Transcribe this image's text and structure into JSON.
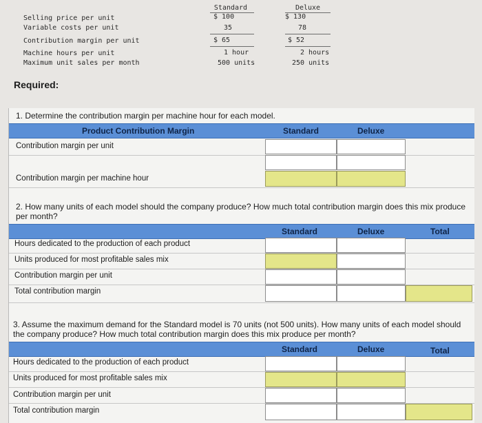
{
  "top_table": {
    "headers": [
      "Standard",
      "Deluxe"
    ],
    "rows": [
      {
        "label": "Selling price per unit",
        "standard": "$ 100",
        "deluxe": "$ 130"
      },
      {
        "label": "Variable costs per unit",
        "standard": "35",
        "deluxe": "78"
      },
      {
        "label": "Contribution margin per unit",
        "standard": "$ 65",
        "deluxe": "$ 52"
      },
      {
        "label": "Machine hours per unit",
        "standard": "1 hour",
        "deluxe": "2 hours"
      },
      {
        "label": "Maximum unit sales per month",
        "standard": "500 units",
        "deluxe": "250 units"
      }
    ]
  },
  "required": "Required:",
  "q1": {
    "text": "1. Determine the contribution margin per machine hour for each model.",
    "header": {
      "label": "Product Contribution Margin",
      "col1": "Standard",
      "col2": "Deluxe"
    },
    "rows": [
      "Contribution margin per unit",
      "Contribution margin per machine hour"
    ]
  },
  "q2": {
    "text": "2. How many units of each model should the company produce? How much total contribution margin does this mix produce per month?",
    "header": {
      "col1": "Standard",
      "col2": "Deluxe",
      "col3": "Total"
    },
    "rows": [
      "Hours dedicated to the production of each product",
      "Units produced for most profitable sales mix",
      "Contribution margin per unit",
      "Total contribution margin"
    ]
  },
  "q3": {
    "text": "3. Assume the maximum demand for the Standard model is 70 units (not 500 units). How many units of each model should the company produce? How much total contribution margin does this mix produce per month?",
    "header": {
      "col1": "Standard",
      "col2": "Deluxe",
      "col3": "Total"
    },
    "rows": [
      "Hours dedicated to the production of each product",
      "Units produced for most profitable sales mix",
      "Contribution margin per unit",
      "Total contribution margin"
    ]
  }
}
